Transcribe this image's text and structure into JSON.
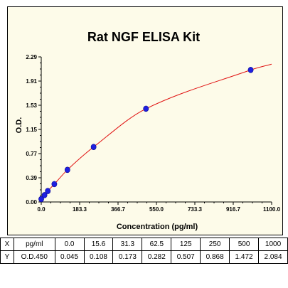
{
  "chart_data": {
    "type": "scatter",
    "title": "Rat NGF ELISA Kit",
    "xlabel": "Concentration (pg/ml)",
    "ylabel": "O.D.",
    "xlim": [
      0,
      1100
    ],
    "ylim": [
      0,
      2.29
    ],
    "x_ticks": [
      "0.0",
      "183.3",
      "366.7",
      "550.0",
      "733.3",
      "916.7",
      "1100.0"
    ],
    "y_ticks": [
      "0.00",
      "0.39",
      "0.77",
      "1.15",
      "1.53",
      "1.91",
      "2.29"
    ],
    "grid": false,
    "series": [
      {
        "x": [
          0.0,
          15.6,
          31.3,
          62.5,
          125,
          250,
          500,
          1000
        ],
        "y": [
          0.045,
          0.108,
          0.173,
          0.282,
          0.507,
          0.868,
          1.472,
          2.084
        ],
        "marker_color": "#1f1fe0",
        "fit_line_color": "#e01010"
      }
    ]
  },
  "table": {
    "rows": [
      {
        "head": "X",
        "unit": "pg/ml",
        "values": [
          "0.0",
          "15.6",
          "31.3",
          "62.5",
          "125",
          "250",
          "500",
          "1000"
        ]
      },
      {
        "head": "Y",
        "unit": "O.D.450",
        "values": [
          "0.045",
          "0.108",
          "0.173",
          "0.282",
          "0.507",
          "0.868",
          "1.472",
          "2.084"
        ]
      }
    ]
  }
}
